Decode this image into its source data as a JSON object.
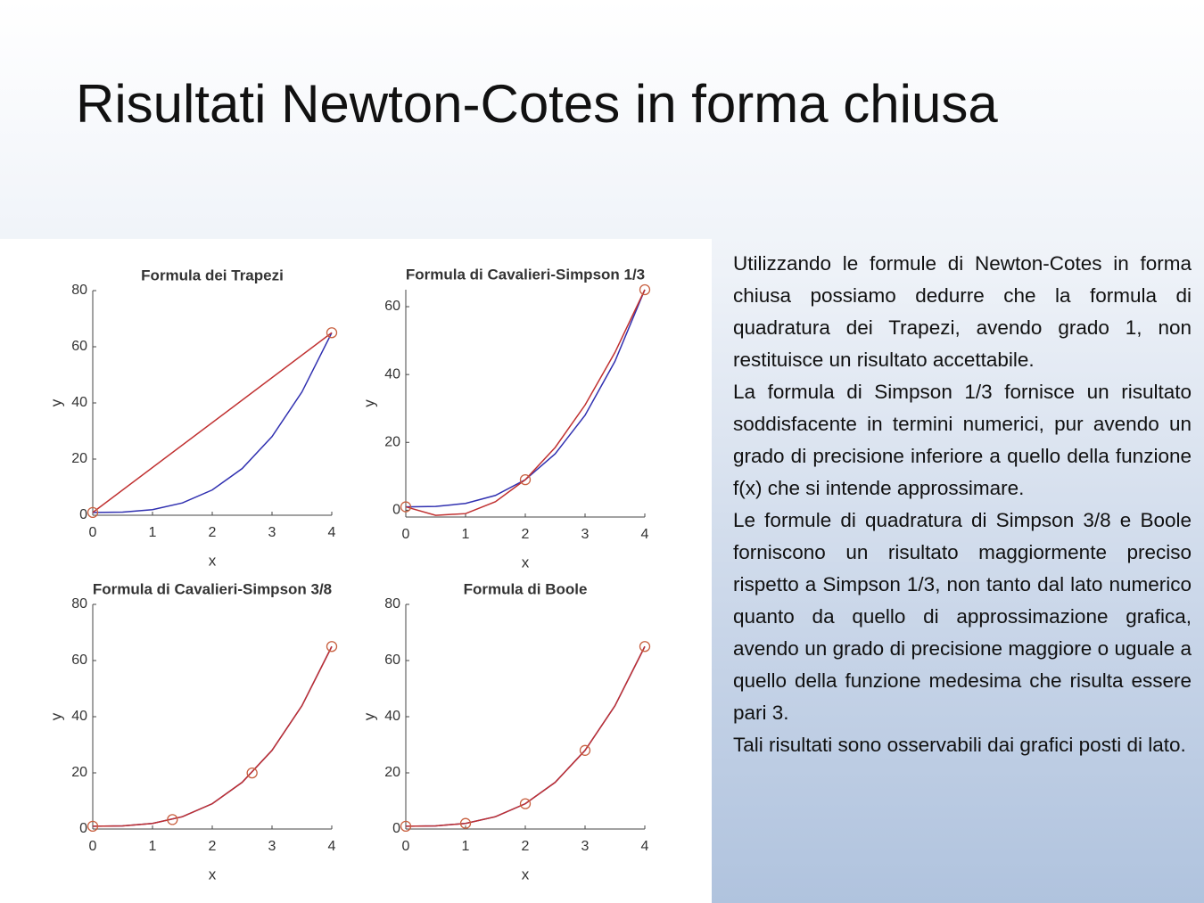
{
  "title": "Risultati Newton-Cotes in forma chiusa",
  "text": [
    "Utilizzando le formule di Newton-Cotes in forma chiusa possiamo dedurre che la formula di quadratura dei Trapezi, avendo grado 1, non restituisce un risultato accettabile.",
    "La formula di Simpson 1/3 fornisce un risultato soddisfacente in termini numerici, pur avendo un grado di precisione inferiore a quello della funzione f(x) che si intende approssimare.",
    "Le formule di quadratura di Simpson 3/8 e Boole forniscono un risultato maggiormente preciso rispetto a Simpson 1/3, non tanto dal lato numerico quanto da quello di approssimazione grafica, avendo un grado di precisione maggiore o uguale a quello della funzione medesima che risulta essere pari 3.",
    "Tali risultati sono osservabili dai grafici posti di lato."
  ],
  "chart_data": [
    {
      "type": "line",
      "title": "Formula dei Trapezi",
      "x_label": "x",
      "y_label": "y",
      "xlim": [
        0,
        4
      ],
      "xticks": [
        0,
        1,
        2,
        3,
        4
      ],
      "ylim": [
        0,
        80
      ],
      "yticks": [
        0,
        20,
        40,
        60,
        80
      ],
      "series": [
        {
          "color": "#3030b0",
          "x": [
            0,
            0.5,
            1,
            1.5,
            2,
            2.5,
            3,
            3.5,
            4
          ],
          "values": [
            1,
            1.125,
            2,
            4.375,
            9,
            16.625,
            28,
            43.875,
            65
          ]
        },
        {
          "color": "#c03030",
          "x": [
            0,
            4
          ],
          "values": [
            1,
            65
          ]
        }
      ],
      "points": {
        "color": "#c86040",
        "x": [
          0,
          4
        ],
        "values": [
          1,
          65
        ]
      }
    },
    {
      "type": "line",
      "title": "Formula di Cavalieri-Simpson 1/3",
      "x_label": "x",
      "y_label": "y",
      "xlim": [
        0,
        4
      ],
      "xticks": [
        0,
        1,
        2,
        3,
        4
      ],
      "ylim": [
        -2,
        65
      ],
      "yticks": [
        0,
        20,
        40,
        60
      ],
      "series": [
        {
          "color": "#3030b0",
          "x": [
            0,
            0.5,
            1,
            1.5,
            2,
            2.5,
            3,
            3.5,
            4
          ],
          "values": [
            1,
            1.125,
            2,
            4.375,
            9,
            16.625,
            28,
            43.875,
            65
          ]
        },
        {
          "color": "#c03030",
          "x": [
            0,
            0.5,
            1,
            1.5,
            2,
            2.5,
            3,
            3.5,
            4
          ],
          "values": [
            1,
            -1.5,
            -1,
            2.5,
            9,
            18.5,
            31,
            46.5,
            65
          ]
        }
      ],
      "points": {
        "color": "#c86040",
        "x": [
          0,
          2,
          4
        ],
        "values": [
          1,
          9,
          65
        ]
      }
    },
    {
      "type": "line",
      "title": "Formula di Cavalieri-Simpson 3/8",
      "x_label": "x",
      "y_label": "y",
      "xlim": [
        0,
        4
      ],
      "xticks": [
        0,
        1,
        2,
        3,
        4
      ],
      "ylim": [
        0,
        80
      ],
      "yticks": [
        0,
        20,
        40,
        60,
        80
      ],
      "series": [
        {
          "color": "#3030b0",
          "x": [
            0,
            0.5,
            1,
            1.5,
            2,
            2.5,
            3,
            3.5,
            4
          ],
          "values": [
            1,
            1.125,
            2,
            4.375,
            9,
            16.625,
            28,
            43.875,
            65
          ]
        },
        {
          "color": "#c03030",
          "x": [
            0,
            0.5,
            1,
            1.5,
            2,
            2.5,
            3,
            3.5,
            4
          ],
          "values": [
            1,
            1.125,
            2,
            4.375,
            9,
            16.625,
            28,
            43.875,
            65
          ]
        }
      ],
      "points": {
        "color": "#c86040",
        "x": [
          0,
          1.3333,
          2.6667,
          4
        ],
        "values": [
          1,
          3.37,
          19.96,
          65
        ]
      }
    },
    {
      "type": "line",
      "title": "Formula di Boole",
      "x_label": "x",
      "y_label": "y",
      "xlim": [
        0,
        4
      ],
      "xticks": [
        0,
        1,
        2,
        3,
        4
      ],
      "ylim": [
        0,
        80
      ],
      "yticks": [
        0,
        20,
        40,
        60,
        80
      ],
      "series": [
        {
          "color": "#3030b0",
          "x": [
            0,
            0.5,
            1,
            1.5,
            2,
            2.5,
            3,
            3.5,
            4
          ],
          "values": [
            1,
            1.125,
            2,
            4.375,
            9,
            16.625,
            28,
            43.875,
            65
          ]
        },
        {
          "color": "#c03030",
          "x": [
            0,
            0.5,
            1,
            1.5,
            2,
            2.5,
            3,
            3.5,
            4
          ],
          "values": [
            1,
            1.125,
            2,
            4.375,
            9,
            16.625,
            28,
            43.875,
            65
          ]
        }
      ],
      "points": {
        "color": "#c86040",
        "x": [
          0,
          1,
          2,
          3,
          4
        ],
        "values": [
          1,
          2,
          9,
          28,
          65
        ]
      }
    }
  ]
}
